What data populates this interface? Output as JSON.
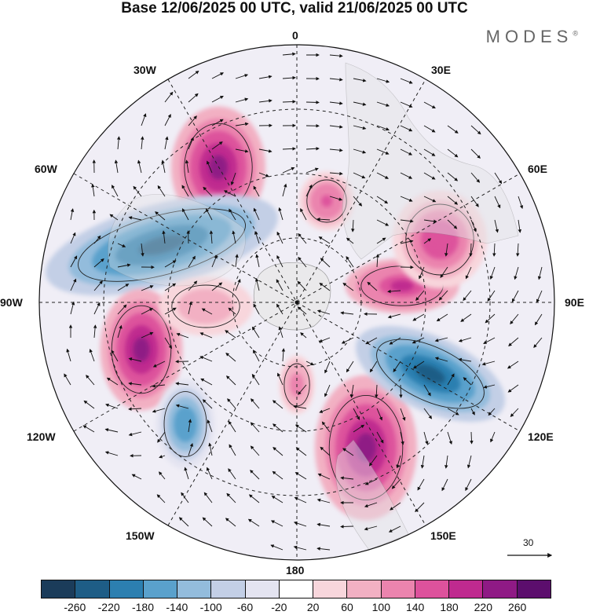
{
  "title": "Base 12/06/2025 00 UTC, valid 21/06/2025 00 UTC",
  "brand": "MODES",
  "brand_mark": "®",
  "longitude_labels": {
    "top": "0",
    "right_upper": "30E",
    "right_mid_upper": "60E",
    "right": "90E",
    "right_mid_lower": "120E",
    "right_lower": "150E",
    "bottom": "180",
    "left_lower": "150W",
    "left_mid_lower": "120W",
    "left": "90W",
    "left_mid_upper": "60W",
    "left_upper": "30W"
  },
  "reference_vector_label": "30",
  "colorbar": {
    "colors": [
      "#1b3c5a",
      "#1e5d86",
      "#2c7fb0",
      "#5aa1cc",
      "#93bcdc",
      "#c3cfe6",
      "#e4e4f1",
      "#ffffff",
      "#f8d6dc",
      "#f2b0c3",
      "#eb84ae",
      "#dd529c",
      "#bf2a8f",
      "#8f1a85",
      "#5c0e6d"
    ],
    "tick_labels": [
      "-260",
      "-220",
      "-180",
      "-140",
      "-100",
      "-60",
      "-20",
      "20",
      "60",
      "100",
      "140",
      "180",
      "220",
      "260"
    ]
  },
  "anomaly_centers": [
    {
      "name": "pos-north-atlantic",
      "value": 230
    },
    {
      "name": "pos-east-atlantic",
      "value": 160
    },
    {
      "name": "neg-canada",
      "value": -240
    },
    {
      "name": "pos-central-siberia",
      "value": 210
    },
    {
      "name": "pos-west-siberia",
      "value": 170
    },
    {
      "name": "pos-gulf-alaska",
      "value": 230
    },
    {
      "name": "neg-east-pacific",
      "value": -170
    },
    {
      "name": "pos-bering",
      "value": 120
    },
    {
      "name": "pos-north-pacific",
      "value": 220
    },
    {
      "name": "neg-east-siberia",
      "value": -260
    },
    {
      "name": "pos-arctic-canada",
      "value": 90
    }
  ]
}
